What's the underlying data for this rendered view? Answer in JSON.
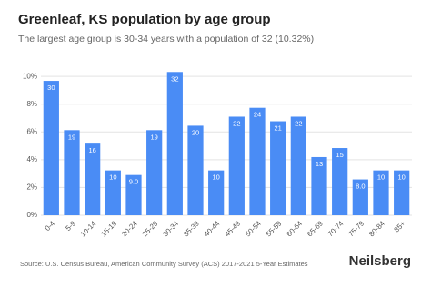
{
  "chart_data": {
    "type": "bar",
    "title": "Greenleaf, KS population by age group",
    "subtitle": "The largest age group is 30-34 years with a population of 32 (10.32%)",
    "categories": [
      "0-4",
      "5-9",
      "10-14",
      "15-19",
      "20-24",
      "25-29",
      "30-34",
      "35-39",
      "40-44",
      "45-49",
      "50-54",
      "55-59",
      "60-64",
      "65-69",
      "70-74",
      "75-79",
      "80-84",
      "85+"
    ],
    "values": [
      9.68,
      6.13,
      5.16,
      3.23,
      2.9,
      6.13,
      10.32,
      6.45,
      3.23,
      7.1,
      7.74,
      6.77,
      7.1,
      4.19,
      4.84,
      2.58,
      3.23,
      3.23
    ],
    "bar_labels": [
      "30",
      "19",
      "16",
      "10",
      "9.0",
      "19",
      "32",
      "20",
      "10",
      "22",
      "24",
      "21",
      "22",
      "13",
      "15",
      "8.0",
      "10",
      "10"
    ],
    "color": "#4a8cf5",
    "ylim": [
      0,
      10.6
    ],
    "yticks": [
      {
        "value": 0,
        "label": "0%"
      },
      {
        "value": 2,
        "label": "2%"
      },
      {
        "value": 4,
        "label": "4%"
      },
      {
        "value": 6,
        "label": "6%"
      },
      {
        "value": 8,
        "label": "8%"
      },
      {
        "value": 10,
        "label": "10%"
      }
    ],
    "grid": true,
    "source": "Source: U.S. Census Bureau, American Community Survey (ACS) 2017-2021 5-Year Estimates",
    "brand": "Neilsberg"
  }
}
